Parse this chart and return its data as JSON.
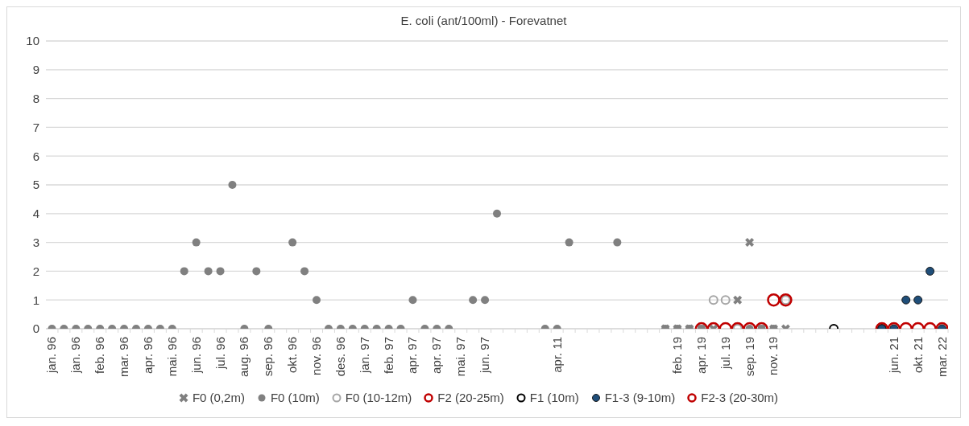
{
  "chart_data": {
    "type": "scatter",
    "title": "E. coli (ant/100ml) - Forevatnet",
    "categories": [
      "jan. 96",
      null,
      "jan. 96",
      null,
      "feb. 96",
      null,
      "mar. 96",
      null,
      "apr. 96",
      null,
      "mai. 96",
      null,
      "jun. 96",
      null,
      "jul. 96",
      null,
      "aug. 96",
      null,
      "sep. 96",
      null,
      "okt. 96",
      null,
      "nov. 96",
      null,
      "des. 96",
      null,
      "jan. 97",
      null,
      "feb. 97",
      null,
      "apr. 97",
      null,
      "apr. 97",
      null,
      "mai. 97",
      null,
      "jun. 97",
      null,
      null,
      null,
      null,
      null,
      "apr. 11",
      null,
      null,
      null,
      null,
      null,
      null,
      null,
      null,
      null,
      "feb. 19",
      null,
      "apr. 19",
      null,
      "jul. 19",
      null,
      "sep. 19",
      null,
      "nov. 19",
      null,
      null,
      null,
      null,
      null,
      null,
      null,
      null,
      null,
      "jun. 21",
      null,
      "okt. 21",
      null,
      "mar. 22"
    ],
    "series": [
      {
        "name": "F0 (0,2m)",
        "color": "#808080",
        "marker": "cross",
        "values": [
          null,
          null,
          null,
          null,
          null,
          null,
          null,
          null,
          null,
          null,
          null,
          null,
          null,
          null,
          null,
          null,
          null,
          null,
          null,
          null,
          null,
          null,
          null,
          null,
          null,
          null,
          null,
          null,
          null,
          null,
          null,
          null,
          null,
          null,
          null,
          null,
          null,
          null,
          null,
          null,
          null,
          null,
          null,
          null,
          null,
          null,
          null,
          null,
          null,
          null,
          null,
          0,
          0,
          0,
          0,
          0,
          null,
          1,
          3,
          0,
          0,
          0,
          null,
          null,
          null,
          null,
          null,
          null,
          null,
          null,
          null,
          null,
          null,
          null,
          null
        ]
      },
      {
        "name": "F0 (10m)",
        "color": "#808080",
        "marker": "circle",
        "values": [
          0,
          0,
          0,
          0,
          0,
          0,
          0,
          0,
          0,
          0,
          0,
          2,
          3,
          2,
          2,
          5,
          0,
          2,
          0,
          null,
          3,
          2,
          1,
          0,
          0,
          0,
          0,
          0,
          0,
          0,
          1,
          0,
          0,
          0,
          null,
          1,
          1,
          4,
          null,
          null,
          null,
          0,
          0,
          3,
          null,
          null,
          null,
          3,
          null,
          null,
          null,
          0,
          0,
          0,
          0,
          null,
          null,
          null,
          0,
          0,
          0,
          null,
          null,
          null,
          null,
          null,
          null,
          null,
          null,
          null,
          null,
          null,
          null,
          null,
          null
        ]
      },
      {
        "name": "F0 (10-12m)",
        "color": "#a6a6a6",
        "marker": "circle",
        "values": [
          null,
          null,
          null,
          null,
          null,
          null,
          null,
          null,
          null,
          null,
          null,
          null,
          null,
          null,
          null,
          null,
          null,
          null,
          null,
          null,
          null,
          null,
          null,
          null,
          null,
          null,
          null,
          null,
          null,
          null,
          null,
          null,
          null,
          null,
          null,
          null,
          null,
          null,
          null,
          null,
          null,
          null,
          null,
          null,
          null,
          null,
          null,
          null,
          null,
          null,
          null,
          null,
          null,
          null,
          null,
          1,
          1,
          0,
          null,
          null,
          null,
          1,
          null,
          null,
          null,
          null,
          null,
          null,
          null,
          null,
          null,
          null,
          null,
          null,
          null
        ]
      },
      {
        "name": "F2 (20-25m)",
        "color": "#c00000",
        "marker": "circle",
        "values": [
          null,
          null,
          null,
          null,
          null,
          null,
          null,
          null,
          null,
          null,
          null,
          null,
          null,
          null,
          null,
          null,
          null,
          null,
          null,
          null,
          null,
          null,
          null,
          null,
          null,
          null,
          null,
          null,
          null,
          null,
          null,
          null,
          null,
          null,
          null,
          null,
          null,
          null,
          null,
          null,
          null,
          null,
          null,
          null,
          null,
          null,
          null,
          null,
          null,
          null,
          null,
          null,
          null,
          null,
          0,
          0,
          0,
          0,
          0,
          0,
          1,
          1,
          null,
          null,
          null,
          null,
          null,
          null,
          null,
          null,
          null,
          null,
          null,
          null,
          null
        ]
      },
      {
        "name": "F1 (10m)",
        "color": "#000000",
        "marker": "circle",
        "values": [
          null,
          null,
          null,
          null,
          null,
          null,
          null,
          null,
          null,
          null,
          null,
          null,
          null,
          null,
          null,
          null,
          null,
          null,
          null,
          null,
          null,
          null,
          null,
          null,
          null,
          null,
          null,
          null,
          null,
          null,
          null,
          null,
          null,
          null,
          null,
          null,
          null,
          null,
          null,
          null,
          null,
          null,
          null,
          null,
          null,
          null,
          null,
          null,
          null,
          null,
          null,
          null,
          null,
          null,
          null,
          null,
          null,
          null,
          null,
          null,
          null,
          null,
          null,
          null,
          null,
          0,
          null,
          null,
          null,
          0,
          null,
          null,
          null,
          null,
          null
        ]
      },
      {
        "name": "F1-3 (9-10m)",
        "color": "#1f4e79",
        "marker": "circle",
        "values": [
          null,
          null,
          null,
          null,
          null,
          null,
          null,
          null,
          null,
          null,
          null,
          null,
          null,
          null,
          null,
          null,
          null,
          null,
          null,
          null,
          null,
          null,
          null,
          null,
          null,
          null,
          null,
          null,
          null,
          null,
          null,
          null,
          null,
          null,
          null,
          null,
          null,
          null,
          null,
          null,
          null,
          null,
          null,
          null,
          null,
          null,
          null,
          null,
          null,
          null,
          null,
          null,
          null,
          null,
          null,
          null,
          null,
          null,
          null,
          null,
          null,
          null,
          null,
          null,
          null,
          null,
          null,
          null,
          null,
          0,
          0,
          1,
          1,
          2,
          0
        ]
      },
      {
        "name": "F2-3 (20-30m)",
        "color": "#c00000",
        "marker": "circle",
        "values": [
          null,
          null,
          null,
          null,
          null,
          null,
          null,
          null,
          null,
          null,
          null,
          null,
          null,
          null,
          null,
          null,
          null,
          null,
          null,
          null,
          null,
          null,
          null,
          null,
          null,
          null,
          null,
          null,
          null,
          null,
          null,
          null,
          null,
          null,
          null,
          null,
          null,
          null,
          null,
          null,
          null,
          null,
          null,
          null,
          null,
          null,
          null,
          null,
          null,
          null,
          null,
          null,
          null,
          null,
          null,
          null,
          null,
          null,
          null,
          null,
          null,
          null,
          null,
          null,
          null,
          null,
          null,
          null,
          null,
          0,
          0,
          0,
          0,
          0,
          0
        ]
      }
    ],
    "ylim": [
      0,
      10
    ],
    "yticks": [
      0,
      1,
      2,
      3,
      4,
      5,
      6,
      7,
      8,
      9,
      10
    ],
    "grid": "y",
    "legend": "bottom"
  }
}
